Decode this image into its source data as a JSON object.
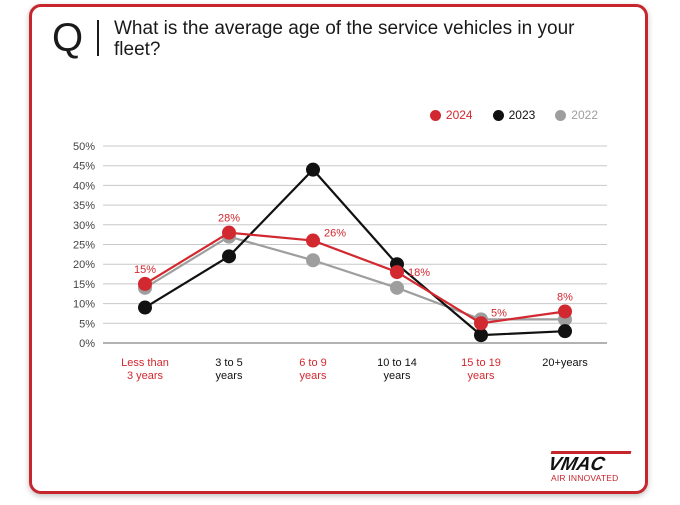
{
  "header": {
    "q_letter": "Q",
    "question": "What is the average age of the service vehicles in your fleet?"
  },
  "brand": {
    "name": "VMAC",
    "tagline": "AIR INNOVATED",
    "color": "#c8262d"
  },
  "colors": {
    "y2024": "#d2282f",
    "y2023": "#111111",
    "y2022": "#9e9e9e",
    "grid": "#c8c8c8"
  },
  "chart_data": {
    "type": "line",
    "title": "What is the average age of the service vehicles in your fleet?",
    "categories": [
      [
        "Less than",
        "3 years"
      ],
      [
        "3 to 5",
        "years"
      ],
      [
        "6 to 9",
        "years"
      ],
      [
        "10 to 14",
        "years"
      ],
      [
        "15 to 19",
        "years"
      ],
      [
        "20+years"
      ]
    ],
    "category_label_colors": [
      "#d2282f",
      "#111111",
      "#d2282f",
      "#111111",
      "#d2282f",
      "#111111"
    ],
    "y_ticks": [
      "0%",
      "5%",
      "10%",
      "15%",
      "20%",
      "25%",
      "30%",
      "35%",
      "40%",
      "45%",
      "50%"
    ],
    "ylim": [
      0,
      50
    ],
    "grid": true,
    "legend_position": "top-right",
    "series": [
      {
        "name": "2022",
        "color": "#9e9e9e",
        "values": [
          14,
          27,
          21,
          14,
          6,
          6
        ],
        "labels": []
      },
      {
        "name": "2023",
        "color": "#111111",
        "values": [
          9,
          22,
          44,
          20,
          2,
          3
        ],
        "labels": []
      },
      {
        "name": "2024",
        "color": "#d2282f",
        "values": [
          15,
          28,
          26,
          18,
          5,
          8
        ],
        "labels": [
          "15%",
          "28%",
          "26%",
          "18%",
          "5%",
          "8%"
        ]
      }
    ],
    "legend": [
      {
        "name": "2024",
        "color": "#d2282f"
      },
      {
        "name": "2023",
        "color": "#111111"
      },
      {
        "name": "2022",
        "color": "#9e9e9e"
      }
    ]
  }
}
